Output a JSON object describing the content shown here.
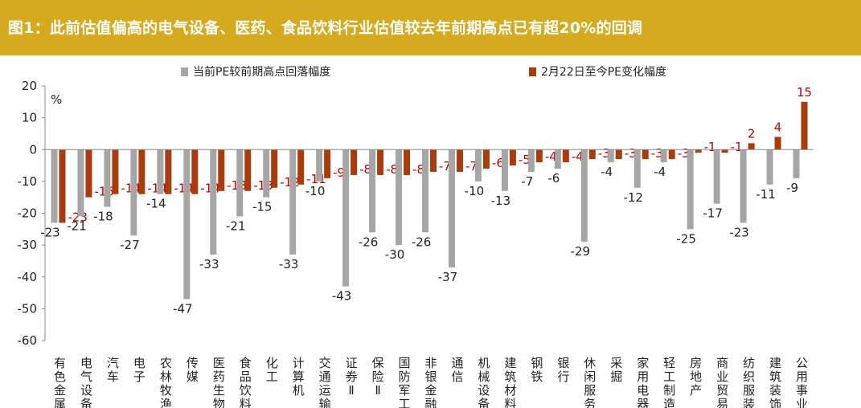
{
  "banner": {
    "title": "图1：此前估值偏高的电气设备、医药、食品饮料行业估值较去年前期高点已有超20%的回调",
    "background": "#d6aa1f"
  },
  "chart_data": {
    "type": "bar",
    "title": "",
    "ylabel": "%",
    "xlabel": "",
    "ylim": [
      -60,
      20
    ],
    "yticks": [
      20,
      10,
      0,
      -10,
      -20,
      -30,
      -40,
      -50,
      -60
    ],
    "legend_position": "top",
    "categories": [
      "有色金属",
      "电气设备",
      "汽车",
      "电子",
      "农林牧渔",
      "传媒",
      "医药生物",
      "食品饮料",
      "化工",
      "计算机",
      "交通运输",
      "证券Ⅱ",
      "保险Ⅱ",
      "国防军工",
      "非银金融",
      "通信",
      "机械设备",
      "建筑材料",
      "钢铁",
      "银行",
      "休闲服务",
      "采掘",
      "家用电器",
      "轻工制造",
      "房地产",
      "商业贸易",
      "纺织服装",
      "建筑装饰",
      "公用事业"
    ],
    "series": [
      {
        "name": "当前PE较前期高点回落幅度",
        "color": "#a6a6a6",
        "label_color": "#222222",
        "values": [
          -23,
          -21,
          -18,
          -27,
          -14,
          -47,
          -33,
          -21,
          -15,
          -33,
          -10,
          -43,
          -26,
          -30,
          -26,
          -37,
          -10,
          -13,
          -7,
          -6,
          -29,
          -4,
          -12,
          -4,
          -25,
          -17,
          -23,
          -11,
          -9
        ]
      },
      {
        "name": "2月22日至今PE变化幅度",
        "color": "#a83c0c",
        "label_color": "#c00000",
        "values": [
          -23,
          -15,
          -14,
          -14,
          -14,
          -14,
          -13,
          -13,
          -12,
          -11,
          -9,
          -8,
          -8,
          -8,
          -7,
          -7,
          -6,
          -5,
          -4,
          -4,
          -3,
          -3,
          -3,
          -3,
          -1,
          -1,
          2,
          4,
          15
        ]
      }
    ]
  }
}
